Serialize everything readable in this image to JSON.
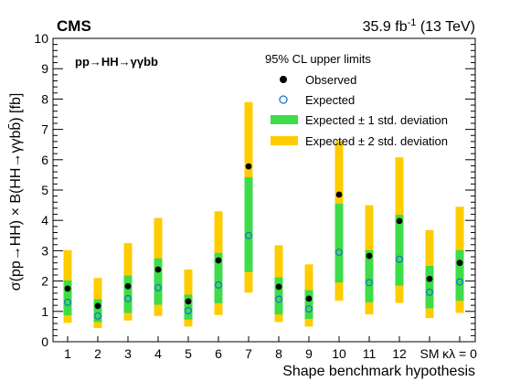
{
  "header": {
    "experiment": "CMS",
    "lumi_value": "35.9 fb",
    "lumi_exp": "-1",
    "energy": " (13 TeV)"
  },
  "process_label": "pp→HH→γγbb",
  "chart_data": {
    "type": "scatter",
    "title": "",
    "xlabel": "Shape benchmark hypothesis",
    "ylabel": "σ(pp→HH) × B(HH→γγbb̄) [fb]",
    "ylim": [
      0,
      10
    ],
    "yticks": [
      0,
      1,
      2,
      3,
      4,
      5,
      6,
      7,
      8,
      9,
      10
    ],
    "categories": [
      "1",
      "2",
      "3",
      "4",
      "5",
      "6",
      "7",
      "8",
      "9",
      "10",
      "11",
      "12",
      "SM",
      "κλ = 0"
    ],
    "legend_header": "95% CL upper limits",
    "legend_position": "top-right",
    "series": [
      {
        "name": "Observed",
        "values": [
          1.75,
          1.18,
          1.83,
          2.38,
          1.33,
          2.68,
          5.78,
          1.81,
          1.42,
          4.85,
          2.83,
          3.98,
          2.07,
          2.6
        ]
      },
      {
        "name": "Expected",
        "values": [
          1.3,
          0.85,
          1.42,
          1.78,
          1.02,
          1.87,
          3.5,
          1.4,
          1.08,
          2.95,
          1.95,
          2.72,
          1.63,
          1.97
        ]
      },
      {
        "name": "Expected ± 1 std. deviation",
        "low": [
          0.87,
          0.65,
          0.95,
          1.22,
          0.73,
          1.27,
          2.3,
          0.9,
          0.75,
          1.95,
          1.3,
          1.85,
          1.1,
          1.35
        ],
        "high": [
          2.02,
          1.4,
          2.18,
          2.75,
          1.55,
          2.93,
          5.42,
          2.12,
          1.7,
          4.55,
          3.02,
          4.18,
          2.5,
          3.02
        ]
      },
      {
        "name": "Expected ± 2 std. deviation",
        "low": [
          0.62,
          0.45,
          0.7,
          0.85,
          0.5,
          0.88,
          1.62,
          0.65,
          0.5,
          1.35,
          0.9,
          1.28,
          0.78,
          0.95
        ],
        "high": [
          3.02,
          2.1,
          3.25,
          4.08,
          2.38,
          4.3,
          7.9,
          3.18,
          2.55,
          6.62,
          4.5,
          6.08,
          3.68,
          4.45
        ]
      }
    ],
    "colors": {
      "observed": "#000000",
      "expected": "#1f6fd0",
      "band_1sigma": "#3ddc48",
      "band_2sigma": "#ffcc00"
    },
    "grid": false
  }
}
